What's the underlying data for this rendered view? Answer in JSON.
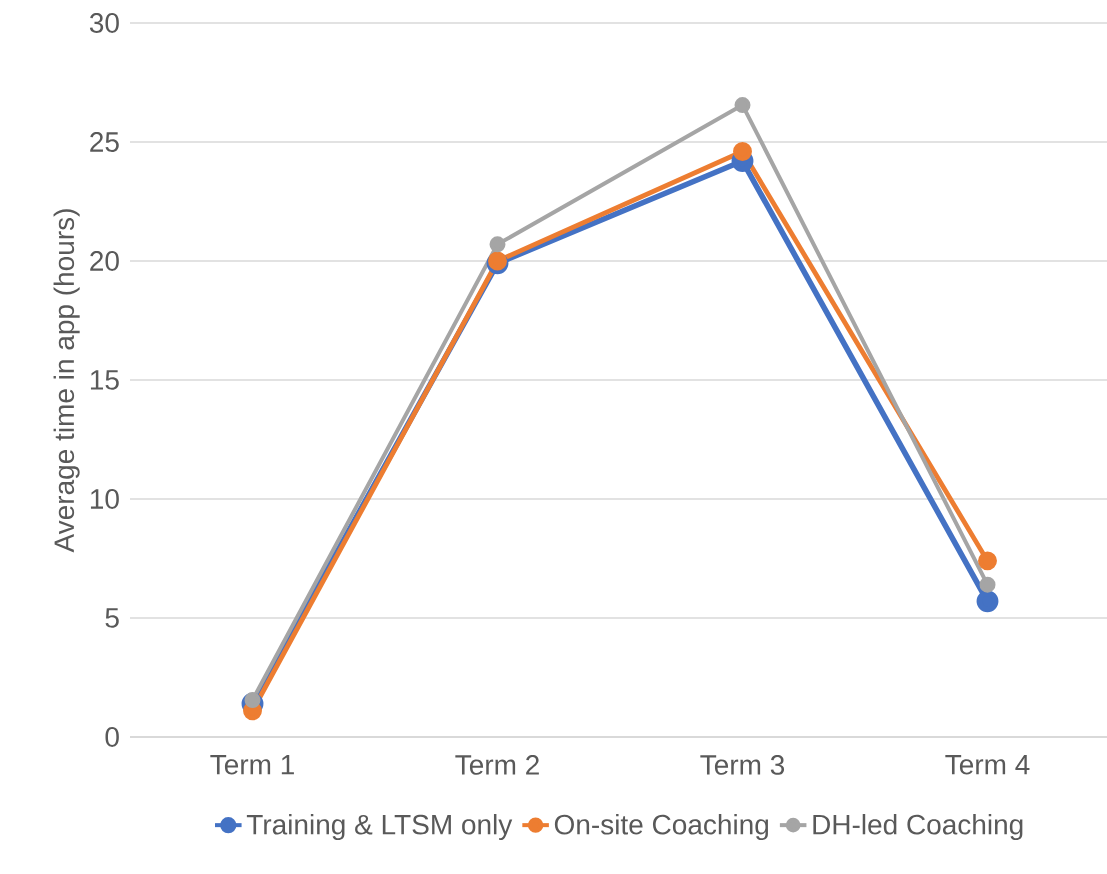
{
  "chart_data": {
    "type": "line",
    "ylabel": "Average time in app (hours)",
    "categories": [
      "Term 1",
      "Term 2",
      "Term 3",
      "Term 4"
    ],
    "series": [
      {
        "name": "Training & LTSM only",
        "color": "#4472c4",
        "values": [
          1.4,
          19.9,
          24.2,
          5.7
        ]
      },
      {
        "name": "On-site Coaching",
        "color": "#ed7d31",
        "values": [
          1.1,
          20.0,
          24.6,
          7.4
        ]
      },
      {
        "name": "DH-led Coaching",
        "color": "#a5a5a5",
        "values": [
          1.55,
          20.7,
          26.55,
          6.4
        ]
      }
    ],
    "ylim": [
      0,
      30
    ],
    "yticks": [
      0,
      5,
      10,
      15,
      20,
      25,
      30
    ],
    "grid": "y",
    "legend": "bottom",
    "marker": "circle",
    "line_style": "solid"
  }
}
